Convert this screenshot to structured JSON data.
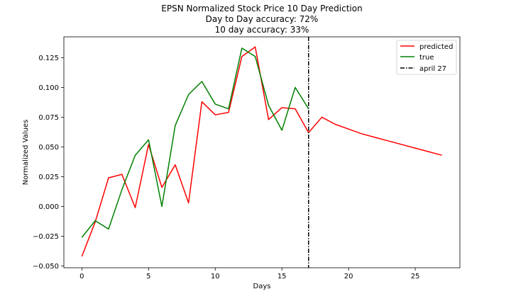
{
  "chart_data": {
    "type": "line",
    "title_lines": [
      "EPSN Normalized Stock Price 10 Day Prediction",
      "Day to Day accuracy: 72%",
      "10 day accuracy: 33%"
    ],
    "xlabel": "Days",
    "ylabel": "Normalized Values",
    "xlim": [
      -1.35,
      28.35
    ],
    "ylim": [
      -0.0515,
      0.1425
    ],
    "x_ticks": [
      0,
      5,
      10,
      15,
      20,
      25
    ],
    "x_tick_labels": [
      "0",
      "5",
      "10",
      "15",
      "20",
      "25"
    ],
    "y_ticks": [
      -0.05,
      -0.025,
      0.0,
      0.025,
      0.05,
      0.075,
      0.1,
      0.125
    ],
    "y_tick_labels": [
      "−0.050",
      "−0.025",
      "0.000",
      "0.025",
      "0.050",
      "0.075",
      "0.100",
      "0.125"
    ],
    "grid": false,
    "legend_position": "top-right",
    "series": [
      {
        "name": "predicted",
        "color": "#ff0000",
        "x": [
          0,
          1,
          2,
          3,
          4,
          5,
          6,
          7,
          8,
          9,
          10,
          11,
          12,
          13,
          14,
          15,
          16,
          17,
          18,
          19,
          20,
          21,
          22,
          23,
          24,
          25,
          26,
          27
        ],
        "y": [
          -0.042,
          -0.013,
          0.024,
          0.027,
          -0.001,
          0.052,
          0.016,
          0.035,
          0.003,
          0.088,
          0.077,
          0.079,
          0.126,
          0.134,
          0.073,
          0.083,
          0.082,
          0.062,
          0.075,
          0.069,
          0.065,
          0.061,
          0.058,
          0.055,
          0.052,
          0.049,
          0.046,
          0.043
        ]
      },
      {
        "name": "true",
        "color": "#008000",
        "x": [
          0,
          1,
          2,
          3,
          4,
          5,
          6,
          7,
          8,
          9,
          10,
          11,
          12,
          13,
          14,
          15,
          16,
          17
        ],
        "y": [
          -0.026,
          -0.012,
          -0.019,
          0.014,
          0.043,
          0.056,
          0.0,
          0.068,
          0.094,
          0.105,
          0.086,
          0.082,
          0.133,
          0.126,
          0.085,
          0.064,
          0.1,
          0.082
        ]
      }
    ],
    "vline": {
      "name": "april 27",
      "x": 17,
      "color": "#000000",
      "style": "dashdot"
    }
  }
}
